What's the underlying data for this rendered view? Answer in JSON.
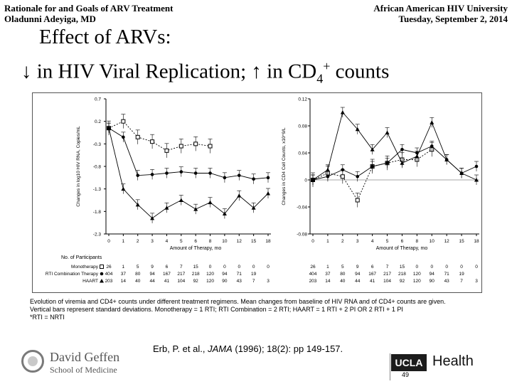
{
  "header": {
    "left_line1": "Rationale for and Goals of ARV Treatment",
    "left_line2": "Oladunni Adeyiga, MD",
    "right_line1": "African American HIV University",
    "right_line2": "Tuesday, September 2, 2014"
  },
  "title": {
    "line1": "Effect of ARVs:",
    "line2_a": "↓ in HIV Viral Replication; ↑ in CD",
    "line2_sub": "4",
    "line2_sup": "+",
    "line2_b": " counts"
  },
  "chart_data": [
    {
      "type": "line",
      "panel": "left",
      "xlabel": "Amount of Therapy, mo",
      "ylabel": "Changes in log10 HIV RNA, Copies/mL",
      "x": [
        0,
        1,
        2,
        3,
        4,
        5,
        6,
        8,
        10,
        12,
        15,
        18
      ],
      "ylim": [
        -2.3,
        0.7
      ],
      "yticks": [
        "0.7",
        "0.2",
        "-0.3",
        "-0.8",
        "-1.3",
        "-1.8",
        "-2.3"
      ],
      "xticks": [
        "0",
        "1",
        "2",
        "3",
        "4",
        "5",
        "6",
        "8",
        "10",
        "12",
        "15",
        "18"
      ],
      "series": [
        {
          "name": "Monotherapy",
          "marker": "square",
          "values": [
            0.05,
            0.2,
            -0.15,
            -0.25,
            -0.45,
            -0.35,
            -0.3,
            -0.35,
            null,
            null,
            null,
            null
          ]
        },
        {
          "name": "RTI Combination Therapy",
          "marker": "circle",
          "values": [
            0.05,
            -0.15,
            -1.0,
            -0.98,
            -0.95,
            -0.92,
            -0.95,
            -0.95,
            -1.05,
            -1.0,
            -1.08,
            -1.05
          ]
        },
        {
          "name": "HAART",
          "marker": "triangle",
          "values": [
            0.05,
            -1.3,
            -1.65,
            -1.95,
            -1.72,
            -1.55,
            -1.75,
            -1.6,
            -1.85,
            -1.45,
            -1.72,
            -1.4
          ]
        }
      ]
    },
    {
      "type": "line",
      "panel": "right",
      "xlabel": "Amount of Therapy, mo",
      "ylabel": "Changes in CD4 Cell Counts, x10^9/L",
      "x": [
        0,
        1,
        2,
        3,
        4,
        5,
        6,
        8,
        10,
        12,
        15,
        18
      ],
      "ylim": [
        -0.08,
        0.12
      ],
      "yticks": [
        "0.12",
        "0.08",
        "0.04",
        "0",
        "-0.04",
        "-0.08"
      ],
      "xticks": [
        "0",
        "1",
        "2",
        "3",
        "4",
        "5",
        "6",
        "8",
        "10",
        "12",
        "15",
        "18"
      ],
      "series": [
        {
          "name": "Monotherapy",
          "marker": "square",
          "values": [
            0.0,
            0.01,
            0.005,
            -0.03,
            0.02,
            0.025,
            0.03,
            0.03,
            0.045,
            null,
            null,
            null
          ]
        },
        {
          "name": "RTI Combination Therapy",
          "marker": "circle",
          "values": [
            0.0,
            0.005,
            0.015,
            0.005,
            0.02,
            0.025,
            0.045,
            0.04,
            0.05,
            0.03,
            0.01,
            0.02
          ]
        },
        {
          "name": "HAART",
          "marker": "triangle",
          "values": [
            0.0,
            0.015,
            0.1,
            0.075,
            0.045,
            0.07,
            0.025,
            0.035,
            0.085,
            0.03,
            0.01,
            0.0
          ]
        }
      ]
    }
  ],
  "participants": {
    "heading": "No. of Participants",
    "rows": [
      {
        "label": "Monotherapy",
        "marker": "square",
        "left": [
          "26",
          "1",
          "5",
          "9",
          "6",
          "7",
          "15",
          "0",
          "0",
          "0",
          "0",
          "0"
        ],
        "right": [
          "26",
          "1",
          "5",
          "9",
          "6",
          "7",
          "15",
          "0",
          "0",
          "0",
          "0",
          "0"
        ]
      },
      {
        "label": "RTI Combination Therapy",
        "marker": "circle",
        "left": [
          "404",
          "37",
          "80",
          "94",
          "167",
          "217",
          "218",
          "120",
          "94",
          "71",
          "19",
          ""
        ],
        "right": [
          "404",
          "37",
          "80",
          "94",
          "167",
          "217",
          "218",
          "120",
          "94",
          "71",
          "19",
          ""
        ]
      },
      {
        "label": "HAART",
        "marker": "triangle",
        "left": [
          "203",
          "14",
          "40",
          "44",
          "41",
          "104",
          "92",
          "120",
          "90",
          "43",
          "7",
          "3"
        ],
        "right": [
          "203",
          "14",
          "40",
          "44",
          "41",
          "104",
          "92",
          "120",
          "90",
          "43",
          "7",
          "3"
        ]
      }
    ]
  },
  "caption": {
    "line1": "Evolution of viremia and CD4+ counts under different treatment regimens.  Mean changes from baseline of HIV RNA and of CD4+ counts are given.",
    "line2": "Vertical bars represent standard deviations.  Monotherapy = 1 RTI; RTI Combination = 2 RTI; HAART = 1 RTI + 2 PI OR 2 RTI + 1 PI",
    "line3": "*RTI = NRTI"
  },
  "citation": {
    "before": "Erb, P. et al., ",
    "journal": "JAMA",
    "after": " (1996); 18(2):  pp 149-157."
  },
  "footer": {
    "geffen_line1": "David Geffen",
    "geffen_line2": "School of Medicine",
    "ucla_box": "UCLA",
    "ucla_health": "Health",
    "page_number": "49"
  }
}
